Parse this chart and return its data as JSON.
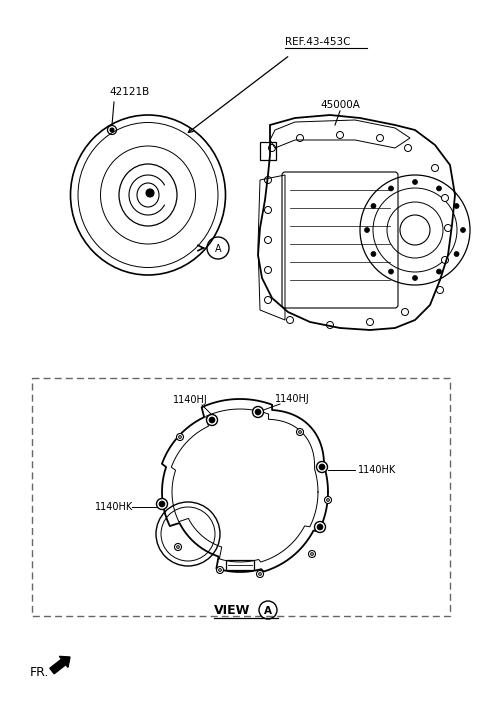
{
  "bg_color": "#ffffff",
  "line_color": "#000000",
  "figsize": [
    4.8,
    7.12
  ],
  "dpi": 100,
  "labels": {
    "part_42121B": "42121B",
    "ref_label": "REF.43-453C",
    "part_45000A": "45000A",
    "label_1140HJ_L": "1140HJ",
    "label_1140HJ_R": "1140HJ",
    "label_1140HK_L": "1140HK",
    "label_1140HK_R": "1140HK",
    "view_text": "VIEW",
    "view_A": "A",
    "fr_label": "FR."
  }
}
